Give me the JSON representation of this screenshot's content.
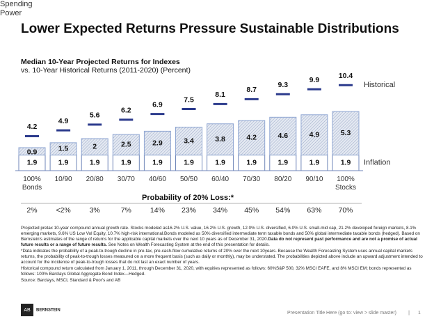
{
  "header": {
    "title": "Lower Expected Returns Pressure Sustainable Distributions"
  },
  "chart_data": {
    "type": "bar",
    "stacked": true,
    "title": "Median 10-Year Projected Returns for Indexes",
    "subtitle": "vs. 10-Year Historical Returns (2011-2020) (Percent)",
    "categories": [
      "100%\nBonds",
      "10/90",
      "20/80",
      "30/70",
      "40/60",
      "50/50",
      "60/40",
      "70/30",
      "80/20",
      "90/10",
      "100%\nStocks"
    ],
    "series": [
      {
        "name": "Inflation",
        "color": "#ffffff",
        "values": [
          1.9,
          1.9,
          1.9,
          1.9,
          1.9,
          1.9,
          1.9,
          1.9,
          1.9,
          1.9,
          1.9
        ]
      },
      {
        "name": "Spending Power",
        "color": "#c9d3e6",
        "values": [
          0.9,
          1.5,
          2,
          2.5,
          2.9,
          3.4,
          3.8,
          4.2,
          4.6,
          4.9,
          5.3
        ]
      },
      {
        "name": "Historical",
        "color": "#2b3a8c",
        "values": [
          4.2,
          4.9,
          5.6,
          6.2,
          6.9,
          7.5,
          8.1,
          8.7,
          9.3,
          9.9,
          10.4
        ],
        "marker": "dash"
      }
    ],
    "loss_title": "Probability of 20% Loss:*",
    "loss_labels": [
      "2%",
      "<2%",
      "3%",
      "7%",
      "14%",
      "23%",
      "34%",
      "45%",
      "54%",
      "63%",
      "70%"
    ]
  },
  "notes": [
    {
      "text": "Projected pretax 10-year compound annual growth rate. Stocks modeled as16.2% U.S. value, 16.2% U.S. growth, 12.0% U.S. diversified, 6.0% U.S. small-mid cap, 21.2% developed foreign markets, 8.1% emerging markets, 9.6% US Low Vol Equity, 10.7% high-risk international.Bonds modeled as 50% diversified intermediate term taxable bonds and 50% global intermediate taxable bonds (hedged). Based on Bernstein's estimates of the range of returns for the applicable capital markets over the next 10 years as of December 31, 2020.",
      "bold": "Data do not represent past performance and are not a promise of actual future results or a range of future results.",
      "rest": " See Notes on Wealth Forecasting System at the end of this presentation for details."
    },
    "*Data indicates the probability of a peak-to-trough decline in pre-tax, pre-cash-flow cumulative returns of 20% over the next 10years. Because the Wealth Forecasting System uses annual capital markets returns, the probability of peak-to-trough losses measured on a more frequent basis (such as daily or monthly), may be understated. The probabilities depicted above include an upward adjustment intended to account for the incidence of peak-to-trough losses that do not last an exact number of years.",
    "Historical compound return calculated from January 1, 2011, through December 31, 2020, with equities represented as follows: 60%S&P 500, 32% MSCI EAFE, and 8% MSCI EM; bonds represented as follows: 100% Barclays Global Aggregate Bond Index—Hedged.",
    "Source: Barclays, MSCI, Standard & Poor's and AB"
  ],
  "footer": {
    "logo": "BERNSTEIN",
    "text": "Presentation Title Here (go to: view > slide master)",
    "separator": "|",
    "page": "1"
  }
}
